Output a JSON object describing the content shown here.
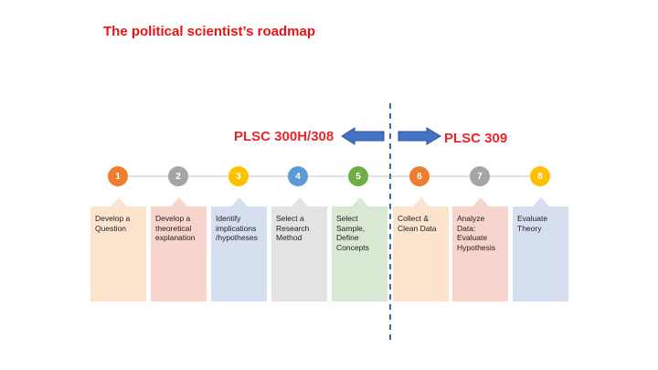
{
  "title": "The political scientist’s roadmap",
  "left_course": "PLSC 300H/308",
  "right_course": "PLSC 309",
  "colors": {
    "title": "#ee1111",
    "course": "#e8262a",
    "arrow": "#4472c4",
    "divider": "#3a6ea8"
  },
  "steps": [
    {
      "number": "1",
      "label": "Develop  a\nQuestion",
      "circle_color": "#ed7d31",
      "box_color": "#fde5cd"
    },
    {
      "number": "2",
      "label": "Develop a\ntheoretical\nexplanation",
      "circle_color": "#a5a5a5",
      "box_color": "#f8d5cc"
    },
    {
      "number": "3",
      "label": "Identify\nimplications\n/hypotheses",
      "circle_color": "#ffc000",
      "box_color": "#d6dff0"
    },
    {
      "number": "4",
      "label": "Select a\nResearch\nMethod",
      "circle_color": "#5b9bd5",
      "box_color": "#e3e3e3"
    },
    {
      "number": "5",
      "label": "Select\nSample,\nDefine\nConcepts",
      "circle_color": "#70ad47",
      "box_color": "#d9e8d2"
    },
    {
      "number": "6",
      "label": "Collect &\nClean Data",
      "circle_color": "#ed7d31",
      "box_color": "#fde5cd"
    },
    {
      "number": "7",
      "label": "Analyze\nData:\nEvaluate\nHypothesis",
      "circle_color": "#a5a5a5",
      "box_color": "#f8d5cc"
    },
    {
      "number": "8",
      "label": "Evaluate\nTheory",
      "circle_color": "#ffc000",
      "box_color": "#d6dff0"
    }
  ]
}
